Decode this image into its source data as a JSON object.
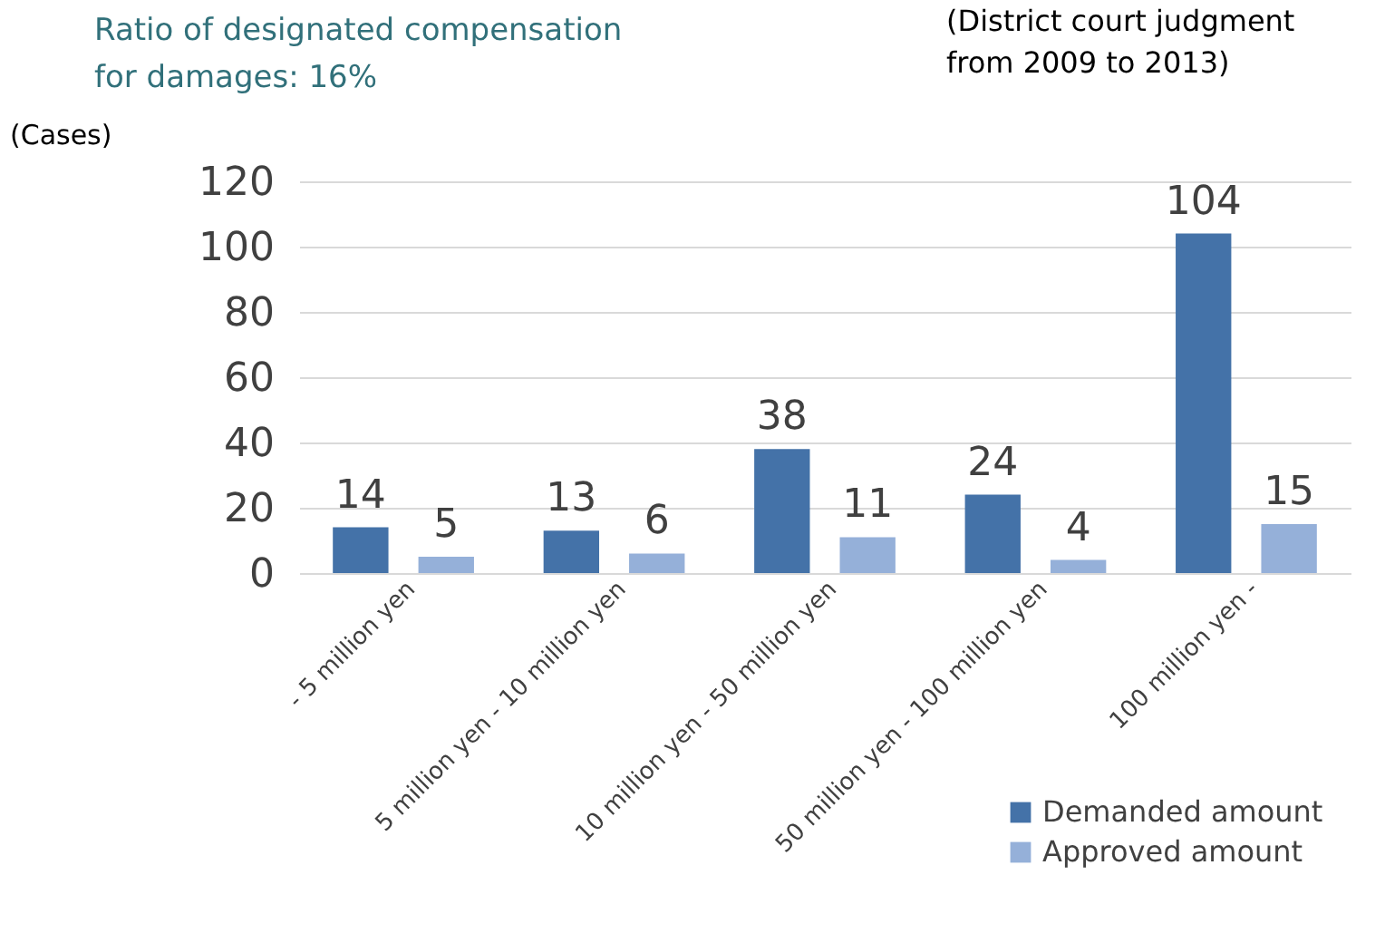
{
  "chart_data": {
    "type": "bar",
    "title": "Ratio of designated compensation\nfor damages: 16%",
    "ylabel": "(Cases)",
    "annotations": [
      "(District court judgment\nfrom 2009 to 2013)"
    ],
    "categories": [
      "- 5 million yen",
      "5 million yen - 10 million yen",
      "10 million yen - 50 million yen",
      "50 million yen - 100 million yen",
      "100 million yen -"
    ],
    "series": [
      {
        "name": "Demanded amount",
        "color": "#4472a8",
        "values": [
          14,
          13,
          38,
          24,
          104
        ]
      },
      {
        "name": "Approved amount",
        "color": "#95b0d9",
        "values": [
          5,
          6,
          11,
          4,
          15
        ]
      }
    ],
    "ylim": [
      0,
      120
    ],
    "yticks": [
      0,
      20,
      40,
      60,
      80,
      100,
      120
    ],
    "grid": "y",
    "legend": "bottom right",
    "data_labels": true
  }
}
